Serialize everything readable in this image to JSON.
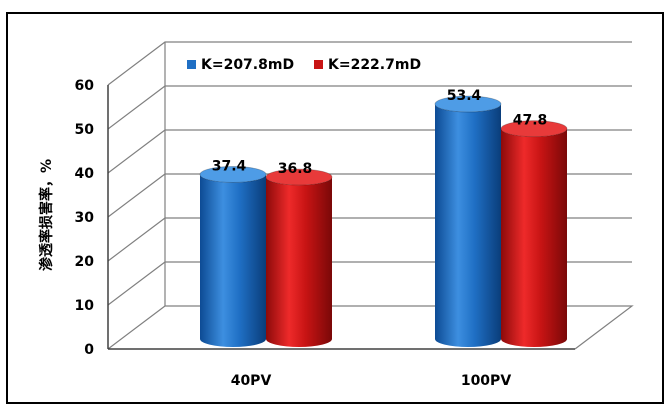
{
  "chart_data": {
    "type": "bar",
    "title": "",
    "xlabel": "",
    "ylabel": "渗透率损害率，%",
    "ylim": [
      0,
      60
    ],
    "yticks": [
      0,
      10,
      20,
      30,
      40,
      50,
      60
    ],
    "categories": [
      "40PV",
      "100PV"
    ],
    "series": [
      {
        "name": "K=207.8mD",
        "values": [
          37.4,
          53.4
        ],
        "color": "#1f6fc4"
      },
      {
        "name": "K=222.7mD",
        "values": [
          36.8,
          47.8
        ],
        "color": "#c81414"
      }
    ],
    "legend_position": "top",
    "grid": true,
    "style": "3d-cylinder"
  }
}
